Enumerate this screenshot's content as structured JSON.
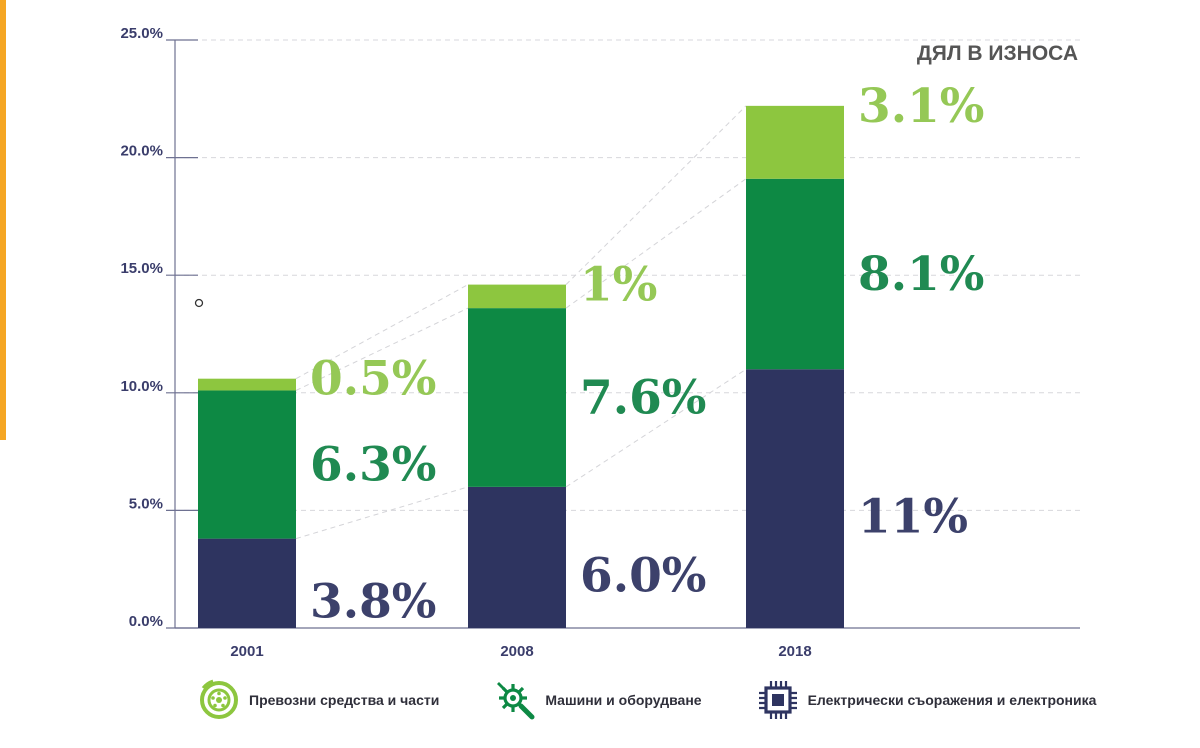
{
  "chart_data": {
    "type": "bar",
    "stacked": true,
    "title": "ДЯЛ В ИЗНОСА",
    "categories": [
      "2001",
      "2008",
      "2018"
    ],
    "ylim": [
      0,
      25
    ],
    "yticks": [
      "0.0%",
      "5.0%",
      "10.0%",
      "15.0%",
      "20.0%",
      "25.0%"
    ],
    "grid": true,
    "series": [
      {
        "name": "Електрически съоражения и електроника",
        "values": [
          3.8,
          6.0,
          11
        ],
        "labels": [
          "3.8%",
          "6.0%",
          "11%"
        ],
        "color": "#2e3460",
        "label_color": "#3c416b"
      },
      {
        "name": "Машини и оборудване",
        "values": [
          6.3,
          7.6,
          8.1
        ],
        "labels": [
          "6.3%",
          "7.6%",
          "8.1%"
        ],
        "color": "#0d8944",
        "label_color": "#208a52"
      },
      {
        "name": "Превозни средства и части",
        "values": [
          0.5,
          1,
          3.1
        ],
        "labels": [
          "0.5%",
          "1%",
          "3.1%"
        ],
        "color": "#8dc63f",
        "label_color": "#95c856"
      }
    ]
  },
  "legend": [
    {
      "label": "Превозни средства и части",
      "icon": "wheel-icon",
      "color": "#8dc63f"
    },
    {
      "label": "Машини и оборудване",
      "icon": "wrench-gear-icon",
      "color": "#0d8944"
    },
    {
      "label": "Електрически съоражения и електроника",
      "icon": "microchip-icon",
      "color": "#2e3460"
    }
  ],
  "colors": {
    "accent": "#f5a623",
    "axis": "#6e7191",
    "grid": "#d7d7dc",
    "tick_text": "#3a3d6b"
  }
}
